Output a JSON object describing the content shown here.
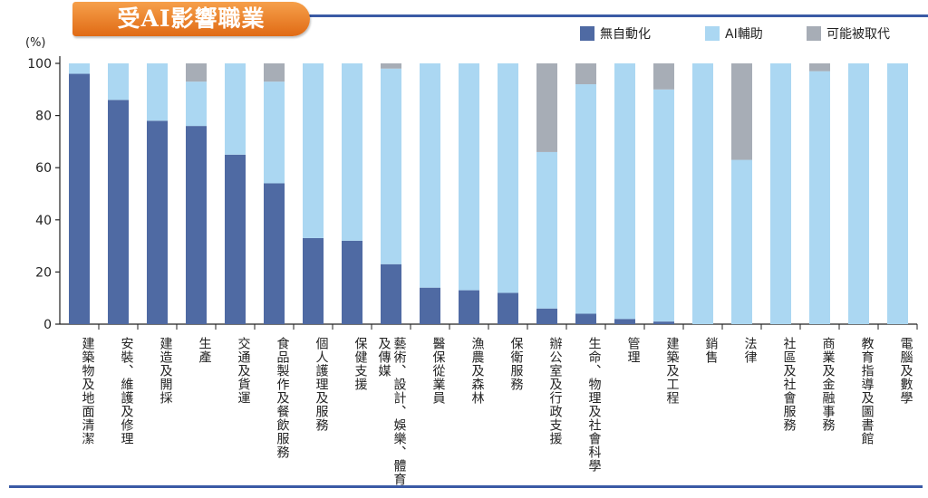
{
  "chart_data": {
    "type": "bar",
    "stacked": true,
    "title": "受AI影響職業",
    "ylabel": "(%)",
    "ylim": [
      0,
      100
    ],
    "yticks": [
      0,
      20,
      40,
      60,
      80,
      100
    ],
    "grid": false,
    "legend_position": "top-right",
    "categories": [
      "建築物及地面清潔",
      "安裝、維護及修理",
      "建造及開採",
      "生產",
      "交通及貨運",
      "食品製作及餐飲服務",
      "個人護理及服務",
      "保健支援",
      "藝術、設計、娛樂、體育及傳媒",
      "醫保從業員",
      "漁農及森林",
      "保衛服務",
      "辦公室及行政支援",
      "生命、物理及社會科學",
      "管理",
      "建築及工程",
      "銷售",
      "法律",
      "社區及社會服務",
      "商業及金融事務",
      "教育指導及圖書館",
      "電腦及數學"
    ],
    "series": [
      {
        "name": "無自動化",
        "color": "#4f6aa3",
        "values": [
          96,
          86,
          78,
          76,
          65,
          54,
          33,
          32,
          23,
          14,
          13,
          12,
          6,
          4,
          2,
          1,
          0,
          0,
          0,
          0,
          0,
          0
        ]
      },
      {
        "name": "AI輔助",
        "color": "#abd7f2",
        "values": [
          4,
          14,
          22,
          17,
          35,
          39,
          67,
          68,
          75,
          86,
          87,
          88,
          60,
          88,
          98,
          89,
          100,
          63,
          100,
          97,
          100,
          100
        ]
      },
      {
        "name": "可能被取代",
        "color": "#a7adb6",
        "values": [
          0,
          0,
          0,
          7,
          0,
          7,
          0,
          0,
          2,
          0,
          0,
          0,
          34,
          8,
          0,
          10,
          0,
          37,
          0,
          3,
          0,
          0
        ]
      }
    ]
  }
}
